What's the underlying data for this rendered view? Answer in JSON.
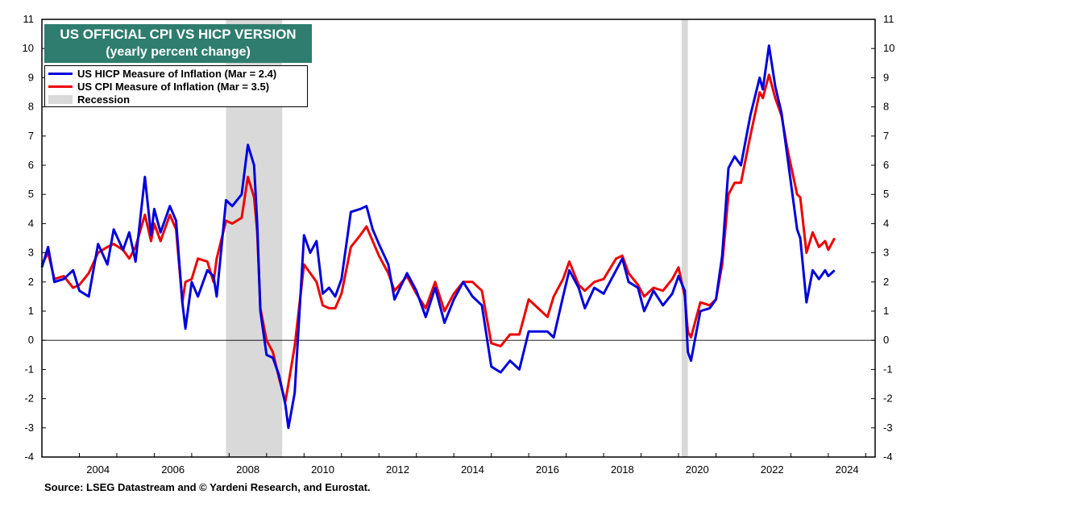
{
  "title": {
    "line1": "US OFFICIAL CPI VS HICP VERSION",
    "line2": "(yearly percent change)",
    "bg_color": "#2e7d6e"
  },
  "legend": {
    "hicp": "US HICP Measure of Inflation (Mar = 2.4)",
    "cpi": "US CPI Measure of Inflation (Mar = 3.5)",
    "recession": "Recession"
  },
  "source": "Source: LSEG Datastream and © Yardeni Research, and Eurostat.",
  "chart_data": {
    "type": "line",
    "x_range": [
      "2003-01",
      "2025-04"
    ],
    "ylim": [
      -4,
      11
    ],
    "y_ticks": [
      "-4",
      "-3",
      "-2",
      "-1",
      "0",
      "1",
      "2",
      "3",
      "4",
      "5",
      "6",
      "7",
      "8",
      "9",
      "10",
      "11"
    ],
    "x_ticks": [
      "2004",
      "2006",
      "2008",
      "2010",
      "2012",
      "2014",
      "2016",
      "2018",
      "2020",
      "2022",
      "2024"
    ],
    "zero_line": true,
    "right_axis": true,
    "recessions": [
      [
        "2007-12",
        "2009-06"
      ],
      [
        "2020-02",
        "2020-04"
      ]
    ],
    "series": [
      {
        "name": "US HICP Measure of Inflation (Mar = 2.4)",
        "color": "#0000dd",
        "points": [
          [
            "2003-01",
            2.5
          ],
          [
            "2003-03",
            3.2
          ],
          [
            "2003-05",
            2.0
          ],
          [
            "2003-08",
            2.1
          ],
          [
            "2003-11",
            2.4
          ],
          [
            "2004-01",
            1.7
          ],
          [
            "2004-04",
            1.5
          ],
          [
            "2004-07",
            3.3
          ],
          [
            "2004-10",
            2.6
          ],
          [
            "2004-12",
            3.8
          ],
          [
            "2005-03",
            3.1
          ],
          [
            "2005-05",
            3.7
          ],
          [
            "2005-07",
            2.7
          ],
          [
            "2005-10",
            5.6
          ],
          [
            "2005-12",
            3.6
          ],
          [
            "2006-01",
            4.5
          ],
          [
            "2006-03",
            3.7
          ],
          [
            "2006-06",
            4.6
          ],
          [
            "2006-08",
            4.1
          ],
          [
            "2006-10",
            1.3
          ],
          [
            "2006-11",
            0.4
          ],
          [
            "2007-01",
            2.0
          ],
          [
            "2007-03",
            1.5
          ],
          [
            "2007-06",
            2.4
          ],
          [
            "2007-08",
            2.2
          ],
          [
            "2007-09",
            1.5
          ],
          [
            "2007-12",
            4.8
          ],
          [
            "2008-02",
            4.6
          ],
          [
            "2008-05",
            5.0
          ],
          [
            "2008-07",
            6.7
          ],
          [
            "2008-09",
            6.0
          ],
          [
            "2008-10",
            4.0
          ],
          [
            "2008-11",
            1.0
          ],
          [
            "2009-01",
            -0.5
          ],
          [
            "2009-03",
            -0.6
          ],
          [
            "2009-05",
            -1.2
          ],
          [
            "2009-07",
            -2.2
          ],
          [
            "2009-08",
            -3.0
          ],
          [
            "2009-10",
            -1.8
          ],
          [
            "2010-01",
            3.6
          ],
          [
            "2010-03",
            3.0
          ],
          [
            "2010-05",
            3.4
          ],
          [
            "2010-07",
            1.6
          ],
          [
            "2010-09",
            1.8
          ],
          [
            "2010-11",
            1.5
          ],
          [
            "2011-01",
            2.1
          ],
          [
            "2011-04",
            4.4
          ],
          [
            "2011-07",
            4.5
          ],
          [
            "2011-09",
            4.6
          ],
          [
            "2011-11",
            3.8
          ],
          [
            "2012-01",
            3.3
          ],
          [
            "2012-04",
            2.6
          ],
          [
            "2012-06",
            1.4
          ],
          [
            "2012-10",
            2.3
          ],
          [
            "2013-01",
            1.7
          ],
          [
            "2013-04",
            0.8
          ],
          [
            "2013-07",
            1.8
          ],
          [
            "2013-10",
            0.6
          ],
          [
            "2014-01",
            1.4
          ],
          [
            "2014-04",
            2.0
          ],
          [
            "2014-07",
            1.5
          ],
          [
            "2014-10",
            1.2
          ],
          [
            "2015-01",
            -0.9
          ],
          [
            "2015-04",
            -1.1
          ],
          [
            "2015-07",
            -0.7
          ],
          [
            "2015-10",
            -1.0
          ],
          [
            "2016-01",
            0.3
          ],
          [
            "2016-04",
            0.3
          ],
          [
            "2016-07",
            0.3
          ],
          [
            "2016-09",
            0.1
          ],
          [
            "2016-12",
            1.5
          ],
          [
            "2017-02",
            2.4
          ],
          [
            "2017-05",
            1.8
          ],
          [
            "2017-07",
            1.1
          ],
          [
            "2017-10",
            1.8
          ],
          [
            "2018-01",
            1.6
          ],
          [
            "2018-05",
            2.4
          ],
          [
            "2018-07",
            2.8
          ],
          [
            "2018-09",
            2.0
          ],
          [
            "2018-12",
            1.8
          ],
          [
            "2019-02",
            1.0
          ],
          [
            "2019-05",
            1.7
          ],
          [
            "2019-08",
            1.2
          ],
          [
            "2019-11",
            1.6
          ],
          [
            "2020-01",
            2.2
          ],
          [
            "2020-03",
            1.7
          ],
          [
            "2020-04",
            -0.4
          ],
          [
            "2020-05",
            -0.7
          ],
          [
            "2020-08",
            1.0
          ],
          [
            "2020-11",
            1.1
          ],
          [
            "2021-01",
            1.4
          ],
          [
            "2021-03",
            2.9
          ],
          [
            "2021-05",
            5.9
          ],
          [
            "2021-07",
            6.3
          ],
          [
            "2021-09",
            6.0
          ],
          [
            "2021-12",
            7.7
          ],
          [
            "2022-03",
            9.0
          ],
          [
            "2022-04",
            8.6
          ],
          [
            "2022-06",
            10.1
          ],
          [
            "2022-08",
            8.7
          ],
          [
            "2022-10",
            7.8
          ],
          [
            "2022-12",
            6.2
          ],
          [
            "2023-03",
            3.8
          ],
          [
            "2023-04",
            3.5
          ],
          [
            "2023-06",
            1.3
          ],
          [
            "2023-08",
            2.4
          ],
          [
            "2023-10",
            2.1
          ],
          [
            "2023-12",
            2.4
          ],
          [
            "2024-01",
            2.2
          ],
          [
            "2024-03",
            2.4
          ]
        ]
      },
      {
        "name": "US CPI Measure of Inflation (Mar = 3.5)",
        "color": "#ee0000",
        "points": [
          [
            "2003-01",
            2.6
          ],
          [
            "2003-03",
            3.0
          ],
          [
            "2003-05",
            2.1
          ],
          [
            "2003-08",
            2.2
          ],
          [
            "2003-11",
            1.8
          ],
          [
            "2004-01",
            1.9
          ],
          [
            "2004-04",
            2.3
          ],
          [
            "2004-07",
            3.0
          ],
          [
            "2004-10",
            3.2
          ],
          [
            "2004-12",
            3.3
          ],
          [
            "2005-03",
            3.1
          ],
          [
            "2005-05",
            2.8
          ],
          [
            "2005-07",
            3.2
          ],
          [
            "2005-10",
            4.3
          ],
          [
            "2005-12",
            3.4
          ],
          [
            "2006-01",
            4.0
          ],
          [
            "2006-03",
            3.4
          ],
          [
            "2006-06",
            4.3
          ],
          [
            "2006-08",
            3.8
          ],
          [
            "2006-10",
            1.3
          ],
          [
            "2006-11",
            2.0
          ],
          [
            "2007-01",
            2.1
          ],
          [
            "2007-03",
            2.8
          ],
          [
            "2007-06",
            2.7
          ],
          [
            "2007-08",
            2.0
          ],
          [
            "2007-09",
            2.8
          ],
          [
            "2007-12",
            4.1
          ],
          [
            "2008-02",
            4.0
          ],
          [
            "2008-05",
            4.2
          ],
          [
            "2008-07",
            5.6
          ],
          [
            "2008-09",
            4.9
          ],
          [
            "2008-10",
            3.7
          ],
          [
            "2008-11",
            1.1
          ],
          [
            "2009-01",
            0.0
          ],
          [
            "2009-03",
            -0.4
          ],
          [
            "2009-05",
            -1.3
          ],
          [
            "2009-07",
            -2.1
          ],
          [
            "2009-08",
            -1.5
          ],
          [
            "2009-10",
            -0.2
          ],
          [
            "2010-01",
            2.6
          ],
          [
            "2010-03",
            2.3
          ],
          [
            "2010-05",
            2.0
          ],
          [
            "2010-07",
            1.2
          ],
          [
            "2010-09",
            1.1
          ],
          [
            "2010-11",
            1.1
          ],
          [
            "2011-01",
            1.6
          ],
          [
            "2011-04",
            3.2
          ],
          [
            "2011-07",
            3.6
          ],
          [
            "2011-09",
            3.9
          ],
          [
            "2011-11",
            3.4
          ],
          [
            "2012-01",
            2.9
          ],
          [
            "2012-04",
            2.3
          ],
          [
            "2012-06",
            1.7
          ],
          [
            "2012-10",
            2.2
          ],
          [
            "2013-01",
            1.6
          ],
          [
            "2013-04",
            1.1
          ],
          [
            "2013-07",
            2.0
          ],
          [
            "2013-10",
            1.0
          ],
          [
            "2014-01",
            1.6
          ],
          [
            "2014-04",
            2.0
          ],
          [
            "2014-07",
            2.0
          ],
          [
            "2014-10",
            1.7
          ],
          [
            "2015-01",
            -0.1
          ],
          [
            "2015-04",
            -0.2
          ],
          [
            "2015-07",
            0.2
          ],
          [
            "2015-10",
            0.2
          ],
          [
            "2016-01",
            1.4
          ],
          [
            "2016-04",
            1.1
          ],
          [
            "2016-07",
            0.8
          ],
          [
            "2016-09",
            1.5
          ],
          [
            "2016-12",
            2.1
          ],
          [
            "2017-02",
            2.7
          ],
          [
            "2017-05",
            1.9
          ],
          [
            "2017-07",
            1.7
          ],
          [
            "2017-10",
            2.0
          ],
          [
            "2018-01",
            2.1
          ],
          [
            "2018-05",
            2.8
          ],
          [
            "2018-07",
            2.9
          ],
          [
            "2018-09",
            2.3
          ],
          [
            "2018-12",
            1.9
          ],
          [
            "2019-02",
            1.5
          ],
          [
            "2019-05",
            1.8
          ],
          [
            "2019-08",
            1.7
          ],
          [
            "2019-11",
            2.1
          ],
          [
            "2020-01",
            2.5
          ],
          [
            "2020-03",
            1.5
          ],
          [
            "2020-04",
            0.3
          ],
          [
            "2020-05",
            0.1
          ],
          [
            "2020-08",
            1.3
          ],
          [
            "2020-11",
            1.2
          ],
          [
            "2021-01",
            1.4
          ],
          [
            "2021-03",
            2.6
          ],
          [
            "2021-05",
            5.0
          ],
          [
            "2021-07",
            5.4
          ],
          [
            "2021-09",
            5.4
          ],
          [
            "2021-12",
            7.0
          ],
          [
            "2022-03",
            8.5
          ],
          [
            "2022-04",
            8.3
          ],
          [
            "2022-06",
            9.1
          ],
          [
            "2022-08",
            8.3
          ],
          [
            "2022-10",
            7.7
          ],
          [
            "2022-12",
            6.5
          ],
          [
            "2023-03",
            5.0
          ],
          [
            "2023-04",
            4.9
          ],
          [
            "2023-06",
            3.0
          ],
          [
            "2023-08",
            3.7
          ],
          [
            "2023-10",
            3.2
          ],
          [
            "2023-12",
            3.4
          ],
          [
            "2024-01",
            3.1
          ],
          [
            "2024-03",
            3.5
          ]
        ]
      }
    ]
  }
}
